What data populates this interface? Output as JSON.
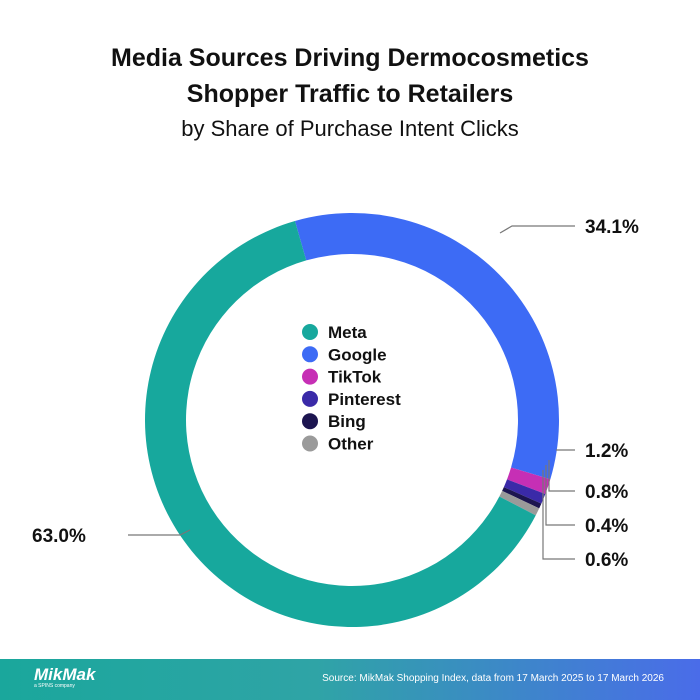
{
  "title": "Media Sources Driving Dermocosmetics Shopper Traffic to Retailers",
  "title_line1": "Media Sources Driving Dermocosmetics",
  "title_line2": "Shopper Traffic to Retailers",
  "subtitle": "by Share of Purchase Intent Clicks",
  "chart_data": {
    "type": "pie",
    "donut": true,
    "title": "Media Sources Driving Dermocosmetics Shopper Traffic to Retailers",
    "subtitle": "by Share of Purchase Intent Clicks",
    "legend_position": "center",
    "series": [
      {
        "name": "Google",
        "value": 34.1,
        "label": "34.1%",
        "color": "#3d6bf5"
      },
      {
        "name": "TikTok",
        "value": 1.2,
        "label": "1.2%",
        "color": "#c62fb5"
      },
      {
        "name": "Pinterest",
        "value": 0.8,
        "label": "0.8%",
        "color": "#3a2aa8"
      },
      {
        "name": "Bing",
        "value": 0.4,
        "label": "0.4%",
        "color": "#1c1550"
      },
      {
        "name": "Other",
        "value": 0.6,
        "label": "0.6%",
        "color": "#9a9a9a"
      },
      {
        "name": "Meta",
        "value": 63.0,
        "label": "63.0%",
        "color": "#17a89d"
      }
    ],
    "legend": [
      "Meta",
      "Google",
      "TikTok",
      "Pinterest",
      "Bing",
      "Other"
    ]
  },
  "footer": {
    "logo": "MikMak",
    "logo_sub": "a SPINS company",
    "source": "Source: MikMak Shopping Index, data from 17 March 2025 to 17 March 2026"
  }
}
